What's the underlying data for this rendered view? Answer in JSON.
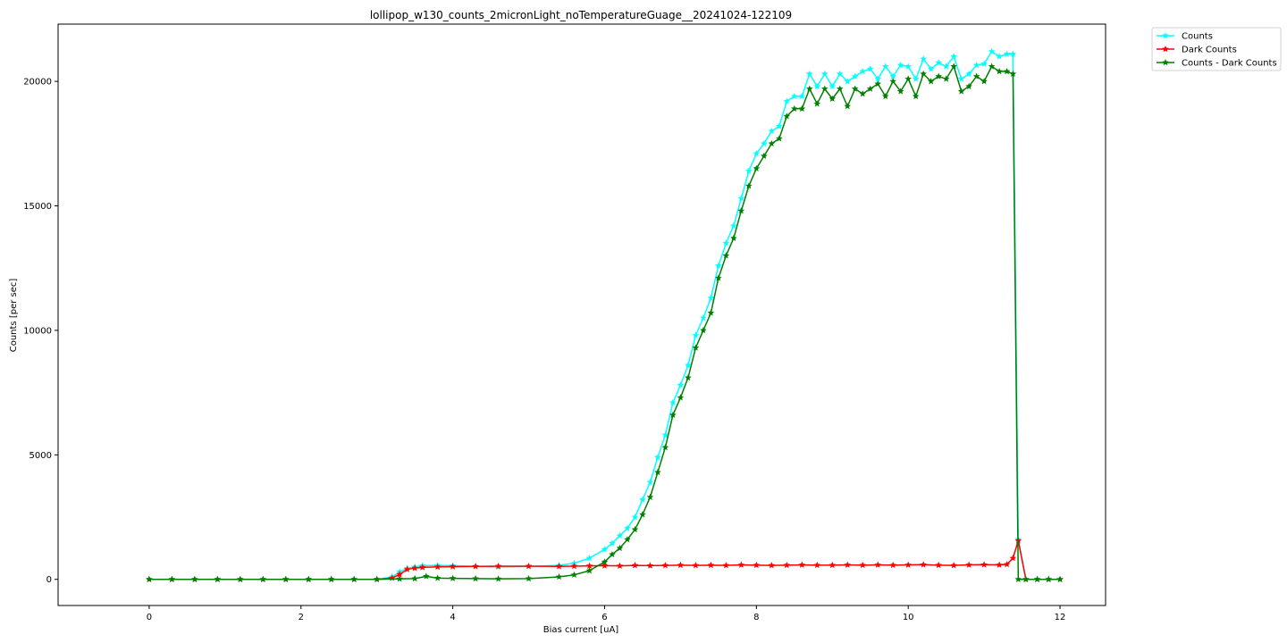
{
  "chart_data": {
    "type": "line",
    "title": "lollipop_w130_counts_2micronLight_noTemperatureGuage__20241024-122109",
    "xlabel": "Bias current [uA]",
    "ylabel": "Counts [per sec]",
    "xlim": [
      -1.2,
      12.6
    ],
    "ylim": [
      -1050,
      22300
    ],
    "xticks": [
      0,
      2,
      4,
      6,
      8,
      10,
      12
    ],
    "yticks": [
      0,
      5000,
      10000,
      15000,
      20000
    ],
    "xtick_labels": [
      "0",
      "2",
      "4",
      "6",
      "8",
      "10",
      "12"
    ],
    "ytick_labels": [
      "0",
      "5000",
      "10000",
      "15000",
      "20000"
    ],
    "grid": false,
    "legend_position": "outside top-right",
    "marker": "star",
    "series": [
      {
        "name": "Counts",
        "color": "#00ffff",
        "x": [
          0,
          0.3,
          0.6,
          0.9,
          1.2,
          1.5,
          1.8,
          2.1,
          2.4,
          2.7,
          3.0,
          3.2,
          3.3,
          3.4,
          3.5,
          3.6,
          3.8,
          4.0,
          4.3,
          4.6,
          5.0,
          5.4,
          5.6,
          5.8,
          6.0,
          6.1,
          6.2,
          6.3,
          6.4,
          6.5,
          6.6,
          6.7,
          6.8,
          6.9,
          7.0,
          7.1,
          7.2,
          7.3,
          7.4,
          7.5,
          7.6,
          7.7,
          7.8,
          7.9,
          8.0,
          8.1,
          8.2,
          8.3,
          8.4,
          8.5,
          8.6,
          8.7,
          8.8,
          8.9,
          9.0,
          9.1,
          9.2,
          9.3,
          9.4,
          9.5,
          9.6,
          9.7,
          9.8,
          9.9,
          10.0,
          10.1,
          10.2,
          10.3,
          10.4,
          10.5,
          10.6,
          10.7,
          10.8,
          10.9,
          11.0,
          11.1,
          11.2,
          11.3,
          11.38,
          11.45,
          11.55,
          11.7,
          11.85,
          12.0
        ],
        "y": [
          0,
          0,
          0,
          0,
          0,
          0,
          0,
          0,
          0,
          0,
          0,
          100,
          300,
          450,
          500,
          550,
          560,
          550,
          520,
          500,
          520,
          560,
          650,
          850,
          1200,
          1450,
          1750,
          2050,
          2500,
          3200,
          3900,
          4900,
          5800,
          7100,
          7800,
          8600,
          9800,
          10500,
          11300,
          12600,
          13500,
          14200,
          15300,
          16400,
          17100,
          17500,
          18000,
          18200,
          19200,
          19400,
          19400,
          20300,
          19800,
          20300,
          19800,
          20300,
          20000,
          20200,
          20400,
          20500,
          20100,
          20600,
          20200,
          20650,
          20600,
          20100,
          20900,
          20500,
          20750,
          20600,
          21000,
          20100,
          20300,
          20650,
          20700,
          21200,
          21000,
          21100,
          21100,
          1600,
          0,
          0,
          0,
          0
        ]
      },
      {
        "name": "Dark Counts",
        "color": "#ff0000",
        "x": [
          0,
          0.3,
          0.6,
          0.9,
          1.2,
          1.5,
          1.8,
          2.1,
          2.4,
          2.7,
          3.0,
          3.2,
          3.3,
          3.4,
          3.5,
          3.6,
          3.8,
          4.0,
          4.3,
          4.6,
          5.0,
          5.4,
          5.6,
          5.8,
          6.0,
          6.2,
          6.4,
          6.6,
          6.8,
          7.0,
          7.2,
          7.4,
          7.6,
          7.8,
          8.0,
          8.2,
          8.4,
          8.6,
          8.8,
          9.0,
          9.2,
          9.4,
          9.6,
          9.8,
          10.0,
          10.2,
          10.4,
          10.6,
          10.8,
          11.0,
          11.2,
          11.3,
          11.38,
          11.45,
          11.55,
          11.7,
          11.85,
          12.0
        ],
        "y": [
          0,
          0,
          0,
          0,
          0,
          0,
          0,
          0,
          0,
          0,
          0,
          50,
          200,
          400,
          450,
          480,
          500,
          510,
          520,
          530,
          530,
          520,
          530,
          540,
          550,
          540,
          560,
          550,
          560,
          570,
          560,
          570,
          560,
          580,
          570,
          560,
          570,
          580,
          570,
          570,
          580,
          570,
          580,
          570,
          580,
          590,
          570,
          560,
          580,
          590,
          580,
          600,
          850,
          1550,
          0,
          0,
          0,
          0
        ]
      },
      {
        "name": "Counts - Dark Counts",
        "color": "#008000",
        "x": [
          0,
          0.3,
          0.6,
          0.9,
          1.2,
          1.5,
          1.8,
          2.1,
          2.4,
          2.7,
          3.0,
          3.3,
          3.5,
          3.65,
          3.8,
          4.0,
          4.3,
          4.6,
          5.0,
          5.4,
          5.6,
          5.8,
          6.0,
          6.1,
          6.2,
          6.3,
          6.4,
          6.5,
          6.6,
          6.7,
          6.8,
          6.9,
          7.0,
          7.1,
          7.2,
          7.3,
          7.4,
          7.5,
          7.6,
          7.7,
          7.8,
          7.9,
          8.0,
          8.1,
          8.2,
          8.3,
          8.4,
          8.5,
          8.6,
          8.7,
          8.8,
          8.9,
          9.0,
          9.1,
          9.2,
          9.3,
          9.4,
          9.5,
          9.6,
          9.7,
          9.8,
          9.9,
          10.0,
          10.1,
          10.2,
          10.3,
          10.4,
          10.5,
          10.6,
          10.7,
          10.8,
          10.9,
          11.0,
          11.1,
          11.2,
          11.3,
          11.38,
          11.45,
          11.55,
          11.7,
          11.85,
          12.0
        ],
        "y": [
          0,
          0,
          0,
          0,
          0,
          0,
          0,
          0,
          0,
          0,
          0,
          20,
          30,
          120,
          50,
          40,
          30,
          20,
          30,
          100,
          180,
          350,
          700,
          1000,
          1250,
          1600,
          2000,
          2600,
          3300,
          4300,
          5300,
          6600,
          7300,
          8100,
          9300,
          10000,
          10700,
          12100,
          13000,
          13700,
          14800,
          15800,
          16500,
          17000,
          17500,
          17700,
          18600,
          18900,
          18900,
          19700,
          19100,
          19700,
          19300,
          19700,
          19000,
          19700,
          19500,
          19700,
          19900,
          19400,
          20000,
          19600,
          20100,
          19400,
          20300,
          20000,
          20200,
          20100,
          20600,
          19600,
          19800,
          20200,
          20000,
          20600,
          20400,
          20400,
          20300,
          0,
          0,
          0,
          0,
          0
        ]
      }
    ]
  }
}
